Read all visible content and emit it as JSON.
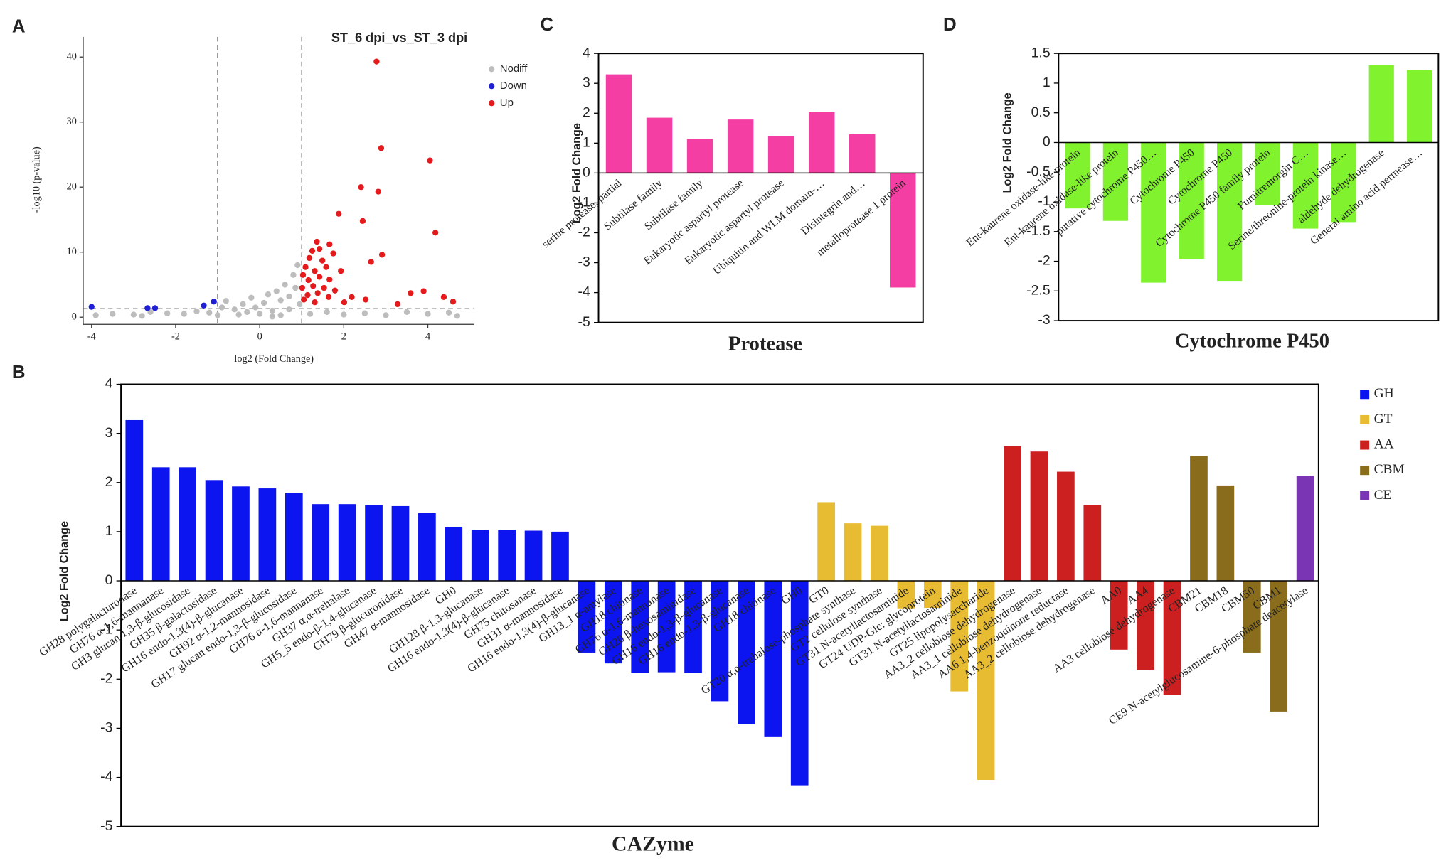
{
  "chart_data": [
    {
      "panel": "A",
      "type": "scatter",
      "title": "ST_6 dpi_vs_ST_3 dpi",
      "x_label": "log2 (Fold Change)",
      "y_label": "-log10 (p-value)",
      "xlim": [
        -4.2,
        5.1
      ],
      "ylim": [
        -1.1,
        43.1
      ],
      "xticks": [
        -4,
        -2,
        0,
        2,
        4
      ],
      "yticks": [
        0,
        10,
        20,
        30,
        40
      ],
      "vlines": [
        -1,
        1
      ],
      "hline": 1.3,
      "series": [
        {
          "name": "Nodiff",
          "color": "#bdbdbd",
          "x": [
            -3.9,
            -3.5,
            -3.0,
            -2.6,
            -2.2,
            -1.8,
            -1.5,
            -1.2,
            -0.9,
            -0.8,
            -0.6,
            -0.5,
            -0.4,
            -0.3,
            -0.2,
            -0.1,
            0.0,
            0.1,
            0.2,
            0.3,
            0.4,
            0.5,
            0.6,
            0.7,
            0.8,
            0.85,
            0.9,
            0.95,
            0.7,
            0.5,
            1.2,
            1.6,
            2.0,
            2.5,
            3.0,
            3.5,
            4.0,
            4.5,
            4.7,
            -1.0,
            0.3,
            -2.8
          ],
          "values": [
            0.3,
            0.5,
            0.4,
            0.8,
            0.6,
            0.5,
            0.9,
            0.7,
            1.5,
            2.5,
            1.2,
            0.4,
            2.0,
            0.8,
            3.0,
            1.5,
            0.5,
            2.2,
            3.5,
            1.0,
            4.0,
            2.6,
            5.0,
            3.2,
            6.5,
            4.5,
            8.0,
            2.0,
            1.2,
            0.3,
            0.5,
            0.8,
            0.4,
            0.6,
            0.3,
            0.8,
            0.5,
            0.7,
            0.2,
            0.3,
            0.1,
            0.2
          ]
        },
        {
          "name": "Down",
          "color": "#1f1fd6",
          "x": [
            -4.0,
            -2.67,
            -2.49,
            -1.33,
            -1.09
          ],
          "values": [
            1.6,
            1.4,
            1.4,
            1.8,
            2.4
          ]
        },
        {
          "name": "Up",
          "color": "#e41a1c",
          "x": [
            2.78,
            2.89,
            4.05,
            2.41,
            2.82,
            1.88,
            2.45,
            4.18,
            2.91,
            2.65,
            1.36,
            1.66,
            1.42,
            1.25,
            1.75,
            1.18,
            1.49,
            1.58,
            1.09,
            1.31,
            1.93,
            1.03,
            1.42,
            1.66,
            1.16,
            1.27,
            1.53,
            1.01,
            1.79,
            1.38,
            1.14,
            1.64,
            1.05,
            1.31,
            2.01,
            2.52,
            2.19,
            3.59,
            3.9,
            4.38,
            4.6,
            3.28
          ],
          "values": [
            39.3,
            26,
            24.1,
            20,
            19.3,
            15.9,
            14.8,
            13.0,
            9.6,
            8.5,
            11.6,
            11.2,
            10.5,
            10.2,
            9.8,
            9.1,
            8.7,
            7.7,
            7.7,
            7.1,
            7.1,
            6.5,
            6.2,
            5.8,
            5.7,
            4.8,
            4.5,
            4.5,
            4.1,
            3.7,
            3.4,
            3.1,
            2.7,
            2.3,
            2.3,
            2.7,
            3.1,
            3.7,
            4.0,
            3.1,
            2.4,
            2.0
          ]
        }
      ]
    },
    {
      "panel": "B",
      "type": "bar",
      "x_label": "CAZyme",
      "y_label": "Log2 Fold Change",
      "ylim": [
        -5,
        4
      ],
      "yticks": [
        -5,
        -4,
        -3,
        -2,
        -1,
        0,
        1,
        2,
        3,
        4
      ],
      "categories": [
        "GH28 polygalacturonase",
        "GH76 α-1,6-mannanase",
        "GH3 glucan 1,3-β-glucosidase",
        "GH35 β-galactosidase",
        "GH16 endo-1,3(4)-β-glucanase",
        "GH92 α-1,2-mannosidase",
        "GH17 glucan endo-1,3-β-glucosidase",
        "GH76 α-1,6-mannanase",
        "GH37 α,α-trehalase",
        "GH5_5 endo-β-1,4-glucanase",
        "GH79 β-glucuronidase",
        "GH47 α-mannosidase",
        "GH0",
        "GH128 β-1,3-glucanase",
        "GH16 endo-1,3(4)-β-glucanase",
        "GH75 chitosanase",
        "GH31 α-mannosidase",
        "GH16 endo-1,3(4)-β-glucanase",
        "GH13_1 α-amylase",
        "GH18 chitinase",
        "GH76 α-1,6-mannanase",
        "GH20 β-hexosaminidase",
        "GH16 endo-1,3-β-glucanase",
        "GH16 endo-1,3-β-glucanase",
        "GH18 chitinase",
        "GH0",
        "GT0",
        "GT20 α,α-trehalose-phosphate synthase",
        "GT2 cellulose synthase",
        "GT31 N-acetyllactosaminide",
        "GT24 UDP-Glc: glycoprotein",
        "GT31 N-acetyllactosaminide",
        "GT25 lipopolysaccharide",
        "AA3_2 cellobiose dehydrogenase",
        "AA3_1 cellobiose dehydrogenase",
        "AA6 1,4-benzoquinone reductase",
        "AA3_2 cellobiose dehydrogenase",
        "AA0",
        "AA4",
        "AA3 cellobiose dehydrogenase",
        "CBM21",
        "CBM18",
        "CBM50",
        "CBM1",
        "CE9 N-acetylglucosamine-6-phosphate deacetylase"
      ],
      "series": [
        {
          "name": "GH",
          "color": "#0c14f0",
          "values": [
            3.27,
            2.31,
            2.31,
            2.05,
            1.92,
            1.88,
            1.79,
            1.56,
            1.56,
            1.54,
            1.52,
            1.38,
            1.1,
            1.04,
            1.04,
            1.02,
            1.0,
            -1.46,
            -1.68,
            -1.88,
            -1.86,
            -1.88,
            -2.45,
            -2.92,
            -3.18,
            -4.16,
            null,
            null,
            null,
            null,
            null,
            null,
            null,
            null,
            null,
            null,
            null,
            null,
            null,
            null,
            null,
            null,
            null,
            null,
            null
          ]
        },
        {
          "name": "GT",
          "color": "#e8bc32",
          "values": [
            null,
            null,
            null,
            null,
            null,
            null,
            null,
            null,
            null,
            null,
            null,
            null,
            null,
            null,
            null,
            null,
            null,
            null,
            null,
            null,
            null,
            null,
            null,
            null,
            null,
            null,
            1.6,
            1.17,
            1.12,
            -0.56,
            -0.55,
            -2.25,
            -4.05,
            null,
            null,
            null,
            null,
            null,
            null,
            null,
            null,
            null,
            null,
            null,
            null
          ]
        },
        {
          "name": "AA",
          "color": "#cc2020",
          "values": [
            null,
            null,
            null,
            null,
            null,
            null,
            null,
            null,
            null,
            null,
            null,
            null,
            null,
            null,
            null,
            null,
            null,
            null,
            null,
            null,
            null,
            null,
            null,
            null,
            null,
            null,
            null,
            null,
            null,
            null,
            null,
            null,
            null,
            2.74,
            2.63,
            2.22,
            1.54,
            -1.4,
            -1.81,
            -2.32,
            null,
            null,
            null,
            null,
            null
          ]
        },
        {
          "name": "CBM",
          "color": "#8a6d1c",
          "values": [
            null,
            null,
            null,
            null,
            null,
            null,
            null,
            null,
            null,
            null,
            null,
            null,
            null,
            null,
            null,
            null,
            null,
            null,
            null,
            null,
            null,
            null,
            null,
            null,
            null,
            null,
            null,
            null,
            null,
            null,
            null,
            null,
            null,
            null,
            null,
            null,
            null,
            null,
            null,
            null,
            2.54,
            1.94,
            -1.46,
            -2.66,
            null
          ]
        },
        {
          "name": "CE",
          "color": "#7a35b5",
          "values": [
            null,
            null,
            null,
            null,
            null,
            null,
            null,
            null,
            null,
            null,
            null,
            null,
            null,
            null,
            null,
            null,
            null,
            null,
            null,
            null,
            null,
            null,
            null,
            null,
            null,
            null,
            null,
            null,
            null,
            null,
            null,
            null,
            null,
            null,
            null,
            null,
            null,
            null,
            null,
            null,
            null,
            null,
            null,
            null,
            2.14
          ]
        }
      ]
    },
    {
      "panel": "C",
      "type": "bar",
      "x_label": "Protease",
      "y_label": "Log2 Fold Change",
      "ylim": [
        -5,
        4
      ],
      "yticks": [
        -5,
        -4,
        -3,
        -2,
        -1,
        0,
        1,
        2,
        3,
        4
      ],
      "color": "#f53ea3",
      "categories": [
        "serine protease, partial",
        "Subtilase family",
        "Subtilase family",
        "Eukaryotic aspartyl protease",
        "Eukaryotic aspartyl protease",
        "Ubiquitin and WLM domain-…",
        "Disintegrin and…",
        "metalloprotease 1 protein"
      ],
      "values": [
        3.3,
        1.85,
        1.14,
        1.79,
        1.23,
        2.04,
        1.3,
        -3.83
      ]
    },
    {
      "panel": "D",
      "type": "bar",
      "x_label": "Cytochrome P450",
      "y_label": "Log2 Fold Change",
      "ylim": [
        -3,
        1.5
      ],
      "yticks": [
        -3,
        -2.5,
        -2,
        -1.5,
        -1,
        -0.5,
        0,
        0.5,
        1,
        1.5
      ],
      "color": "#80f22e",
      "categories": [
        "Ent-kaurene oxidase-like protein",
        "Ent-kaurene oxidase-like protein",
        "putative cytochrome P450…",
        "Cytochrome P450",
        "Cytochrome P450",
        "Cytochrome P450 family protein",
        "Fumitremorgin C…",
        "Serine/threonine-protein kinase…",
        "aldehyde dehydrogenase",
        "General amino acid permease…"
      ],
      "values": [
        -1.11,
        -1.32,
        -2.36,
        -1.96,
        -2.33,
        -1.06,
        -1.45,
        -1.34,
        1.3,
        1.22
      ]
    }
  ]
}
